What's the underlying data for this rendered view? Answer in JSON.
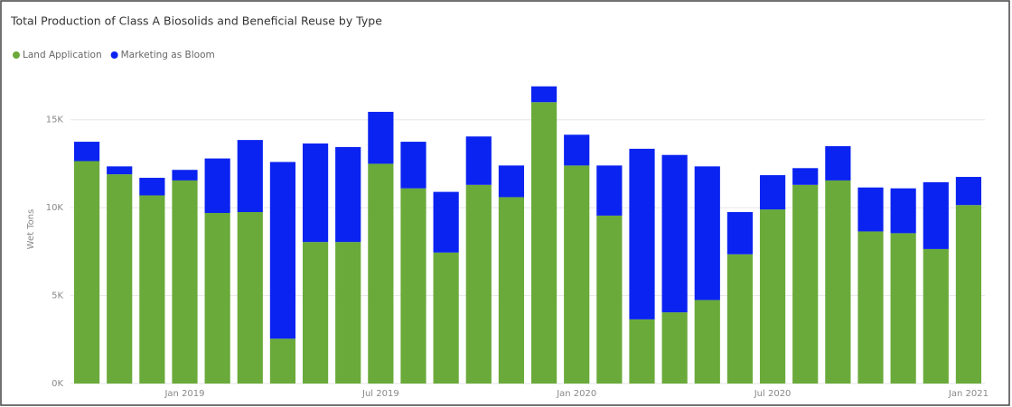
{
  "chart_data": {
    "type": "stacked_bar",
    "title": "Total Production of Class A Biosolids and Beneficial Reuse by Type",
    "y_label": "Wet Tons",
    "categories": [
      null,
      null,
      null,
      "Jan 2019",
      null,
      null,
      null,
      null,
      null,
      "Jul 2019",
      null,
      null,
      null,
      null,
      null,
      "Jan 2020",
      null,
      null,
      null,
      null,
      null,
      "Jul 2020",
      null,
      null,
      null,
      null,
      null,
      "Jan 2021"
    ],
    "series": [
      {
        "name": "Land Application",
        "color": "#6aaa3a",
        "values": [
          12650,
          11900,
          10700,
          11550,
          9700,
          9750,
          2550,
          8050,
          8050,
          12500,
          11100,
          7450,
          11300,
          10600,
          16000,
          12400,
          9550,
          3650,
          4050,
          4750,
          7350,
          9900,
          11300,
          11550,
          8650,
          8550,
          7650,
          10150
        ]
      },
      {
        "name": "Marketing as Bloom",
        "color": "#0a23f0",
        "values": [
          1100,
          450,
          1000,
          600,
          3100,
          4100,
          10050,
          5600,
          5400,
          2950,
          2650,
          3450,
          2750,
          1800,
          900,
          1750,
          2850,
          9700,
          8950,
          7600,
          2400,
          1950,
          950,
          1950,
          2500,
          2550,
          3800,
          1600
        ]
      }
    ],
    "ylim": [
      0,
      17500
    ],
    "yticks": [
      {
        "value": 0,
        "label": "0K"
      },
      {
        "value": 5000,
        "label": "5K"
      },
      {
        "value": 10000,
        "label": "10K"
      },
      {
        "value": 15000,
        "label": "15K"
      }
    ],
    "grid": true,
    "legend": "top-left"
  }
}
